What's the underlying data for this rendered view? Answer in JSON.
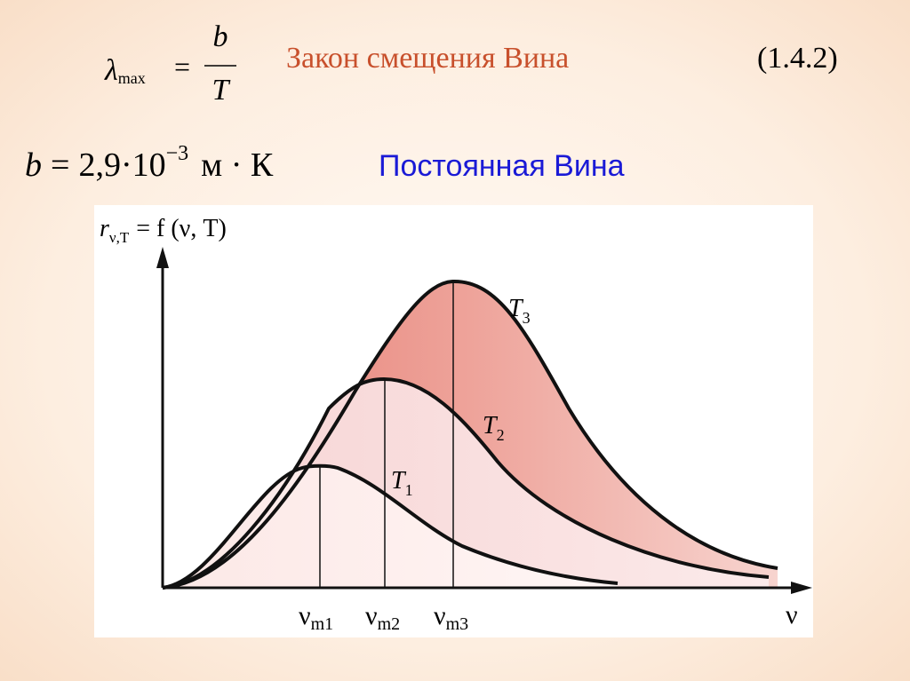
{
  "equation1": {
    "lhs": "λ",
    "lhs_sub": "max",
    "eq": "=",
    "numerator": "b",
    "denominator": "T",
    "name": "Закон смещения Вина",
    "number": "(1.4.2)"
  },
  "equation2": {
    "lhs": "b",
    "eq": "=",
    "mantissa": "2,9",
    "times": "·",
    "base": "10",
    "exponent": "−3",
    "unit": "м · К",
    "name": "Постоянная Вина"
  },
  "diagram": {
    "y_axis_label": {
      "symbol": "r",
      "sub": "ν,T",
      "rest": "= f (ν, T)"
    },
    "x_axis_label": "ν",
    "curves": [
      {
        "symbol": "T",
        "sub": "1"
      },
      {
        "symbol": "T",
        "sub": "2"
      },
      {
        "symbol": "T",
        "sub": "3"
      }
    ],
    "peaks": [
      {
        "symbol": "ν",
        "sub": "m1"
      },
      {
        "symbol": "ν",
        "sub": "m2"
      },
      {
        "symbol": "ν",
        "sub": "m3"
      }
    ]
  }
}
